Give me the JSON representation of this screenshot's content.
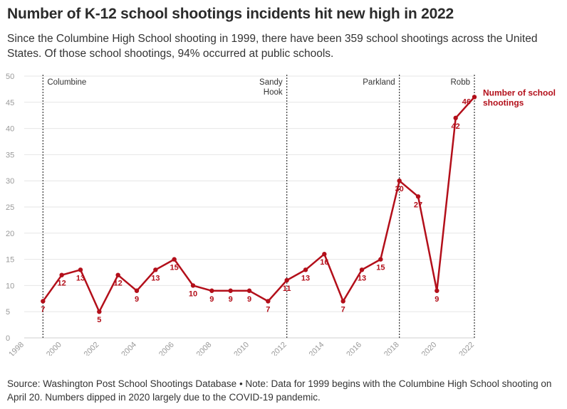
{
  "header": {
    "title": "Number of K-12 school shootings incidents hit new high in 2022",
    "subtitle": "Since the Columbine High School shooting in 1999, there have been 359 school shootings across the United States. Of those school shootings, 94% occurred at public schools."
  },
  "footer": {
    "note": "Source: Washington Post School Shootings Database • Note: Data for 1999 begins with the Columbine High School shooting on April 20. Numbers dipped in 2020 largely due to the COVID-19 pandemic."
  },
  "colors": {
    "series": "#b30f1a",
    "grid": "#e6e6e6",
    "axis_text": "#9a9a9a",
    "annotation_line": "#333333"
  },
  "chart_data": {
    "type": "line",
    "xlim": [
      1998,
      2022
    ],
    "ylim": [
      0,
      50
    ],
    "x_ticks": [
      "1998",
      "2000",
      "2002",
      "2004",
      "2006",
      "2008",
      "2010",
      "2012",
      "2014",
      "2016",
      "2018",
      "2020",
      "2022"
    ],
    "y_ticks": [
      "0",
      "5",
      "10",
      "15",
      "20",
      "25",
      "30",
      "35",
      "40",
      "45",
      "50"
    ],
    "grid": true,
    "series": [
      {
        "name": "Number of school shootings",
        "label_lines": [
          "Number of school",
          "shootings"
        ],
        "color": "#b30f1a",
        "x": [
          1999,
          2000,
          2001,
          2002,
          2003,
          2004,
          2005,
          2006,
          2007,
          2008,
          2009,
          2010,
          2011,
          2012,
          2013,
          2014,
          2015,
          2016,
          2017,
          2018,
          2019,
          2020,
          2021,
          2022
        ],
        "y": [
          7,
          12,
          13,
          5,
          12,
          9,
          13,
          15,
          10,
          9,
          9,
          9,
          7,
          11,
          13,
          16,
          7,
          13,
          15,
          30,
          27,
          9,
          42,
          46
        ],
        "label_pos": [
          "below",
          "below",
          "below",
          "below",
          "below",
          "below",
          "below",
          "below",
          "below",
          "below",
          "below",
          "below",
          "below",
          "below",
          "below",
          "below",
          "below",
          "below",
          "below",
          "below",
          "below",
          "below",
          "below",
          "left"
        ]
      }
    ],
    "annotations": [
      {
        "x": 1999,
        "lines": [
          "Columbine"
        ],
        "align": "right"
      },
      {
        "x": 2012,
        "lines": [
          "Sandy",
          "Hook"
        ],
        "align": "left"
      },
      {
        "x": 2018,
        "lines": [
          "Parkland"
        ],
        "align": "left"
      },
      {
        "x": 2022,
        "lines": [
          "Robb"
        ],
        "align": "left"
      }
    ]
  }
}
